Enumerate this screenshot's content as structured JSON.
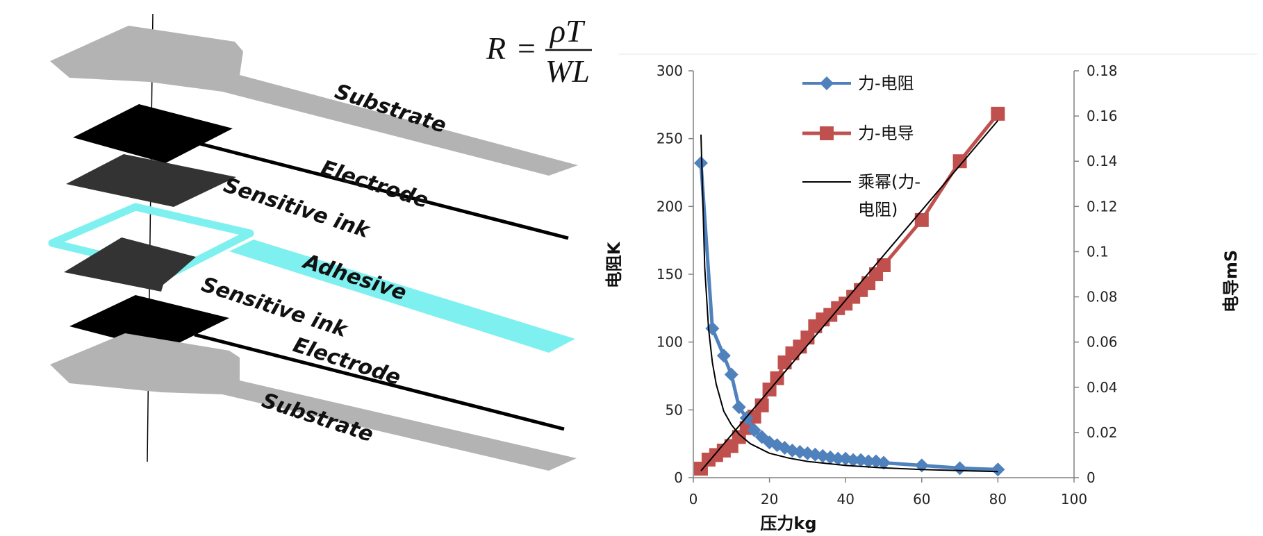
{
  "diagram": {
    "formula": {
      "lhs": "R",
      "eq": "=",
      "numerator": "ρT",
      "denominator": "WL"
    },
    "layers": [
      {
        "label": "Substrate",
        "color": "#b3b3b3"
      },
      {
        "label": "Electrode",
        "color": "#000000"
      },
      {
        "label": "Sensitive ink",
        "color": "#333333"
      },
      {
        "label": "Adhesive",
        "color": "#7ff0f0"
      },
      {
        "label": "Sensitive ink",
        "color": "#333333"
      },
      {
        "label": "Electrode",
        "color": "#000000"
      },
      {
        "label": "Substrate",
        "color": "#b3b3b3"
      }
    ]
  },
  "chart_data": {
    "type": "line",
    "xlabel": "压力kg",
    "ylabel_left": "电阻K",
    "ylabel_right": "电导mS",
    "xlim": [
      0,
      100
    ],
    "xticks": [
      "0",
      "20",
      "40",
      "60",
      "80",
      "100"
    ],
    "ylim_left": [
      0,
      300
    ],
    "yticks_left": [
      "0",
      "50",
      "100",
      "150",
      "200",
      "250",
      "300"
    ],
    "ylim_right": [
      0,
      0.18
    ],
    "yticks_right": [
      "0",
      "0.02",
      "0.04",
      "0.06",
      "0.08",
      "0.1",
      "0.12",
      "0.14",
      "0.16",
      "0.18"
    ],
    "legend_position": "top-left",
    "series": [
      {
        "name": "力-电阻",
        "axis": "left",
        "color": "#4f81bd",
        "marker": "diamond",
        "x": [
          2,
          5,
          8,
          10,
          12,
          14,
          16,
          18,
          20,
          22,
          24,
          26,
          28,
          30,
          32,
          34,
          36,
          38,
          40,
          42,
          44,
          46,
          48,
          50,
          60,
          70,
          80
        ],
        "y": [
          232,
          110,
          90,
          76,
          52,
          44,
          35,
          30,
          26,
          24,
          22,
          20,
          19,
          18,
          17,
          16,
          15,
          14,
          14,
          13,
          13,
          12,
          12,
          11,
          9,
          7,
          6
        ]
      },
      {
        "name": "力-电导",
        "axis": "right",
        "color": "#c0504d",
        "marker": "square",
        "x": [
          2,
          4,
          6,
          8,
          10,
          12,
          14,
          16,
          18,
          20,
          22,
          24,
          26,
          28,
          30,
          32,
          34,
          36,
          38,
          40,
          42,
          44,
          46,
          48,
          50,
          60,
          70,
          80
        ],
        "y": [
          0.004,
          0.008,
          0.01,
          0.012,
          0.014,
          0.018,
          0.022,
          0.027,
          0.032,
          0.039,
          0.044,
          0.051,
          0.055,
          0.058,
          0.062,
          0.067,
          0.07,
          0.072,
          0.075,
          0.077,
          0.08,
          0.083,
          0.086,
          0.09,
          0.094,
          0.114,
          0.14,
          0.161
        ]
      },
      {
        "name": "乘幂(力-电阻)",
        "axis": "left",
        "color": "#000000",
        "marker": "none",
        "fit": "power",
        "x": [
          2,
          3,
          4,
          5,
          6,
          8,
          10,
          12,
          15,
          20,
          25,
          30,
          40,
          50,
          60,
          70,
          80
        ],
        "y": [
          253,
          155,
          110,
          85,
          69,
          49,
          39,
          32,
          25,
          18,
          14.5,
          12,
          9,
          7.2,
          6,
          5.2,
          4.5
        ]
      },
      {
        "name": "",
        "axis": "right",
        "color": "#000000",
        "marker": "none",
        "fit": "linear",
        "x": [
          2,
          80
        ],
        "y": [
          0.003,
          0.158
        ]
      }
    ]
  }
}
